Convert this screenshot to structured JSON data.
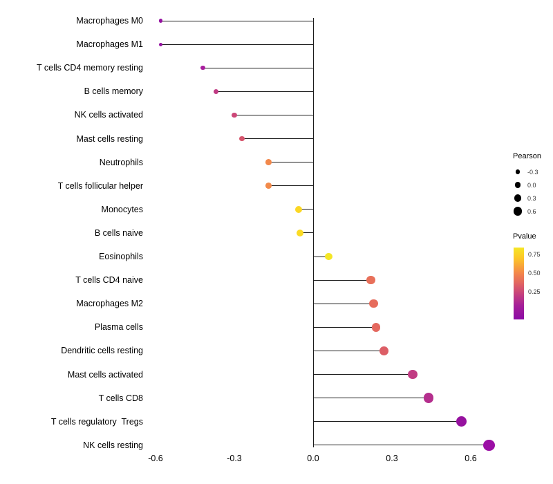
{
  "chart_data": {
    "type": "scatter",
    "subtype": "lollipop",
    "title": "",
    "xlabel": "",
    "ylabel": "",
    "xlim": [
      -0.72,
      0.72
    ],
    "x_ticks": [
      -0.6,
      -0.3,
      0.0,
      0.3,
      0.6
    ],
    "x_tick_labels": [
      "-0.6",
      "-0.3",
      "0.0",
      "0.3",
      "0.6"
    ],
    "size_encoding": "Pearson correlation",
    "color_encoding": "Pvalue",
    "points": [
      {
        "category": "Macrophages M0",
        "pearson": -0.58,
        "pvalue_est": 0.1,
        "color": "#9511A1"
      },
      {
        "category": "Macrophages M1",
        "pearson": -0.58,
        "pvalue_est": 0.1,
        "color": "#9511A1"
      },
      {
        "category": "T cells CD4 memory resting",
        "pearson": -0.42,
        "pvalue_est": 0.18,
        "color": "#A81E9D"
      },
      {
        "category": "B cells memory",
        "pearson": -0.37,
        "pvalue_est": 0.28,
        "color": "#C13B84"
      },
      {
        "category": "NK cells activated",
        "pearson": -0.3,
        "pvalue_est": 0.35,
        "color": "#CC4778"
      },
      {
        "category": "Mast cells resting",
        "pearson": -0.27,
        "pvalue_est": 0.4,
        "color": "#D6556D"
      },
      {
        "category": "Neutrophils",
        "pearson": -0.17,
        "pvalue_est": 0.58,
        "color": "#F2884B"
      },
      {
        "category": "T cells follicular helper",
        "pearson": -0.17,
        "pvalue_est": 0.58,
        "color": "#F28A4A"
      },
      {
        "category": "Monocytes",
        "pearson": -0.055,
        "pvalue_est": 0.8,
        "color": "#FBD724"
      },
      {
        "category": "B cells naive",
        "pearson": -0.05,
        "pvalue_est": 0.8,
        "color": "#FBDB24"
      },
      {
        "category": "Eosinophils",
        "pearson": 0.06,
        "pvalue_est": 0.85,
        "color": "#F4E625"
      },
      {
        "category": "T cells CD4 naive",
        "pearson": 0.22,
        "pvalue_est": 0.5,
        "color": "#E8705A"
      },
      {
        "category": "Macrophages M2",
        "pearson": 0.23,
        "pvalue_est": 0.48,
        "color": "#E66C5C"
      },
      {
        "category": "Plasma cells",
        "pearson": 0.24,
        "pvalue_est": 0.46,
        "color": "#E4685F"
      },
      {
        "category": "Dendritic cells resting",
        "pearson": 0.27,
        "pvalue_est": 0.4,
        "color": "#DC5E66"
      },
      {
        "category": "Mast cells activated",
        "pearson": 0.38,
        "pvalue_est": 0.22,
        "color": "#C13B83"
      },
      {
        "category": "T cells CD8",
        "pearson": 0.44,
        "pvalue_est": 0.18,
        "color": "#B42E8D"
      },
      {
        "category": "T cells regulatory  Tregs",
        "pearson": 0.565,
        "pvalue_est": 0.08,
        "color": "#96129F"
      },
      {
        "category": "NK cells resting",
        "pearson": 0.67,
        "pvalue_est": 0.05,
        "color": "#9B0FA5"
      }
    ],
    "legend_size": {
      "title": "Pearson",
      "entries": [
        {
          "label": "-0.3",
          "value": -0.3
        },
        {
          "label": "0.0",
          "value": 0.0
        },
        {
          "label": "0.3",
          "value": 0.3
        },
        {
          "label": "0.6",
          "value": 0.6
        }
      ]
    },
    "legend_color": {
      "title": "Pvalue",
      "labels": [
        "0.75",
        "0.50",
        "0.25"
      ],
      "gradient": [
        {
          "color": "#F5E626",
          "pos": 0
        },
        {
          "color": "#FCC527",
          "pos": 15
        },
        {
          "color": "#F48849",
          "pos": 35
        },
        {
          "color": "#E16462",
          "pos": 50
        },
        {
          "color": "#C5407E",
          "pos": 65
        },
        {
          "color": "#A62098",
          "pos": 80
        },
        {
          "color": "#8B0AA5",
          "pos": 100
        }
      ]
    },
    "line_color": "#1a1a1a",
    "background_color": "#ffffff"
  }
}
